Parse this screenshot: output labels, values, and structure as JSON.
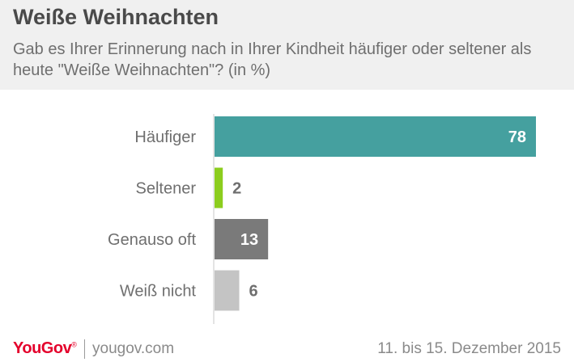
{
  "header": {
    "title": "Weiße Weihnachten",
    "subtitle": "Gab es Ihrer Erinnerung nach in Ihrer Kindheit häufiger oder seltener als heute \"Weiße Weihnachten\"? (in %)"
  },
  "chart_data": {
    "type": "bar",
    "orientation": "horizontal",
    "categories": [
      "Häufiger",
      "Seltener",
      "Genauso oft",
      "Weiß nicht"
    ],
    "values": [
      78,
      2,
      13,
      6
    ],
    "colors": [
      "#45a09f",
      "#8ccd1e",
      "#7a7a7a",
      "#c4c4c4"
    ],
    "xlim": [
      0,
      78
    ],
    "grid": false,
    "legend": "none"
  },
  "footer": {
    "brand": "YouGov",
    "brand_mark": "®",
    "site": "yougov.com",
    "date": "11. bis 15. Dezember 2015",
    "brand_color": "#e4002b"
  }
}
